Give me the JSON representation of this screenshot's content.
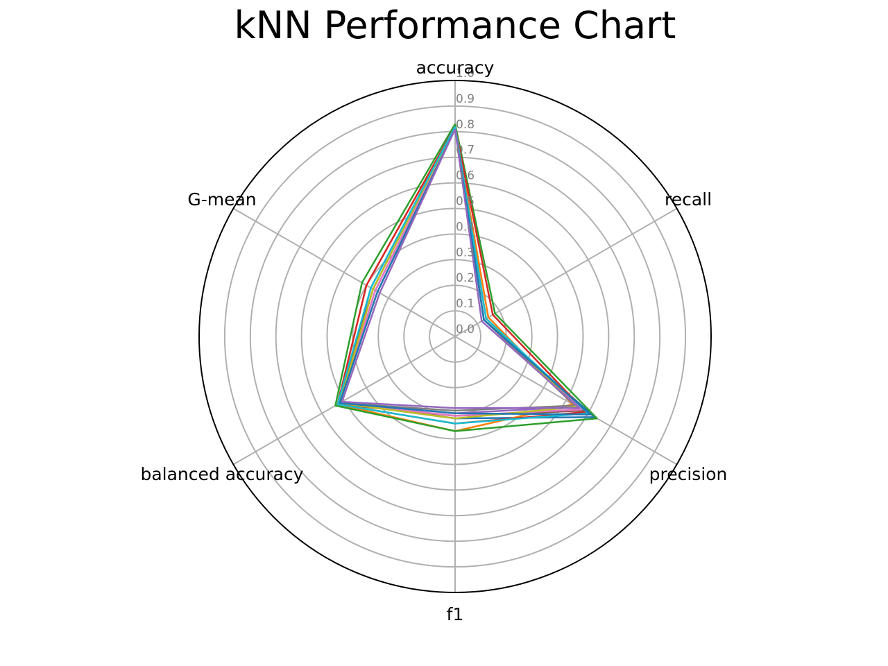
{
  "chart_data": {
    "type": "radar",
    "title": "kNN Performance Chart",
    "axes": [
      "accuracy",
      "recall",
      "precision",
      "f1",
      "balanced accuracy",
      "G-mean"
    ],
    "r_ticks": [
      "0.0",
      "0.1",
      "0.2",
      "0.3",
      "0.4",
      "0.5",
      "0.6",
      "0.7",
      "0.8",
      "0.9",
      "1.0"
    ],
    "r_range": [
      0,
      1
    ],
    "grid": true,
    "legend": "none",
    "series": [
      {
        "color": "#1f77b4",
        "values": [
          0.82,
          0.13,
          0.63,
          0.32,
          0.52,
          0.38
        ]
      },
      {
        "color": "#ff7f0e",
        "values": [
          0.82,
          0.15,
          0.53,
          0.37,
          0.53,
          0.4
        ]
      },
      {
        "color": "#2ca02c",
        "values": [
          0.83,
          0.18,
          0.64,
          0.37,
          0.54,
          0.42
        ]
      },
      {
        "color": "#d62728",
        "values": [
          0.82,
          0.17,
          0.59,
          0.34,
          0.53,
          0.4
        ]
      },
      {
        "color": "#9467bd",
        "values": [
          0.81,
          0.13,
          0.55,
          0.3,
          0.52,
          0.36
        ]
      },
      {
        "color": "#8c564b",
        "values": [
          0.82,
          0.14,
          0.58,
          0.31,
          0.53,
          0.37
        ]
      },
      {
        "color": "#e377c2",
        "values": [
          0.81,
          0.14,
          0.57,
          0.31,
          0.52,
          0.36
        ]
      },
      {
        "color": "#7f7f7f",
        "values": [
          0.81,
          0.13,
          0.54,
          0.29,
          0.52,
          0.35
        ]
      },
      {
        "color": "#bcbd22",
        "values": [
          0.82,
          0.14,
          0.55,
          0.32,
          0.52,
          0.37
        ]
      },
      {
        "color": "#17becf",
        "values": [
          0.82,
          0.14,
          0.6,
          0.34,
          0.53,
          0.38
        ]
      },
      {
        "color": "#1f77b4",
        "values": [
          0.81,
          0.13,
          0.61,
          0.3,
          0.52,
          0.35
        ]
      },
      {
        "color": "#9467bd",
        "values": [
          0.81,
          0.12,
          0.56,
          0.28,
          0.51,
          0.34
        ]
      }
    ]
  }
}
